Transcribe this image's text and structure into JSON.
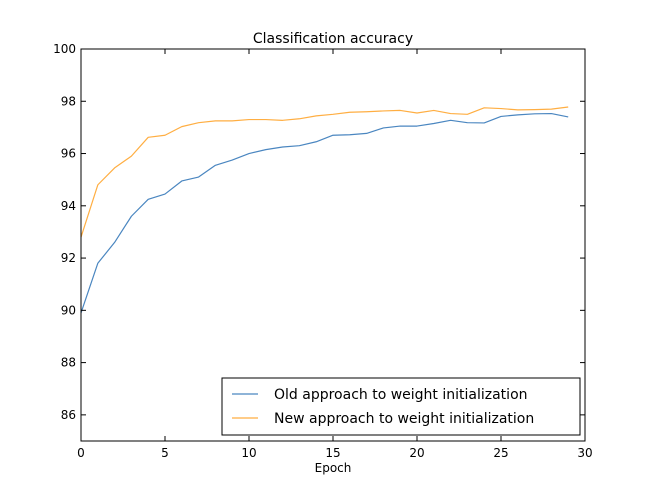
{
  "chart_data": {
    "type": "line",
    "title": "Classification accuracy",
    "xlabel": "Epoch",
    "ylabel": "",
    "xlim": [
      0,
      30
    ],
    "ylim": [
      85,
      100
    ],
    "xticks": [
      "0",
      "5",
      "10",
      "15",
      "20",
      "25",
      "30"
    ],
    "yticks": [
      "86",
      "88",
      "90",
      "92",
      "94",
      "96",
      "98",
      "100"
    ],
    "grid": false,
    "legend_position": "bottom-right",
    "x": [
      0,
      1,
      2,
      3,
      4,
      5,
      6,
      7,
      8,
      9,
      10,
      11,
      12,
      13,
      14,
      15,
      16,
      17,
      18,
      19,
      20,
      21,
      22,
      23,
      24,
      25,
      26,
      27,
      28,
      29
    ],
    "series": [
      {
        "name": "Old approach to weight initialization",
        "color": "#4a86c0",
        "values": [
          89.9,
          91.8,
          92.6,
          93.6,
          94.25,
          94.45,
          94.95,
          95.1,
          95.55,
          95.75,
          96.0,
          96.15,
          96.25,
          96.3,
          96.45,
          96.7,
          96.72,
          96.77,
          96.98,
          97.05,
          97.05,
          97.15,
          97.27,
          97.18,
          97.17,
          97.42,
          97.48,
          97.52,
          97.53,
          97.4
        ]
      },
      {
        "name": "New approach to weight initialization",
        "color": "#ffae42",
        "values": [
          92.8,
          94.8,
          95.45,
          95.9,
          96.62,
          96.7,
          97.03,
          97.18,
          97.25,
          97.25,
          97.3,
          97.3,
          97.27,
          97.33,
          97.44,
          97.5,
          97.58,
          97.6,
          97.63,
          97.65,
          97.55,
          97.65,
          97.53,
          97.5,
          97.75,
          97.72,
          97.67,
          97.68,
          97.7,
          97.78
        ]
      }
    ]
  }
}
